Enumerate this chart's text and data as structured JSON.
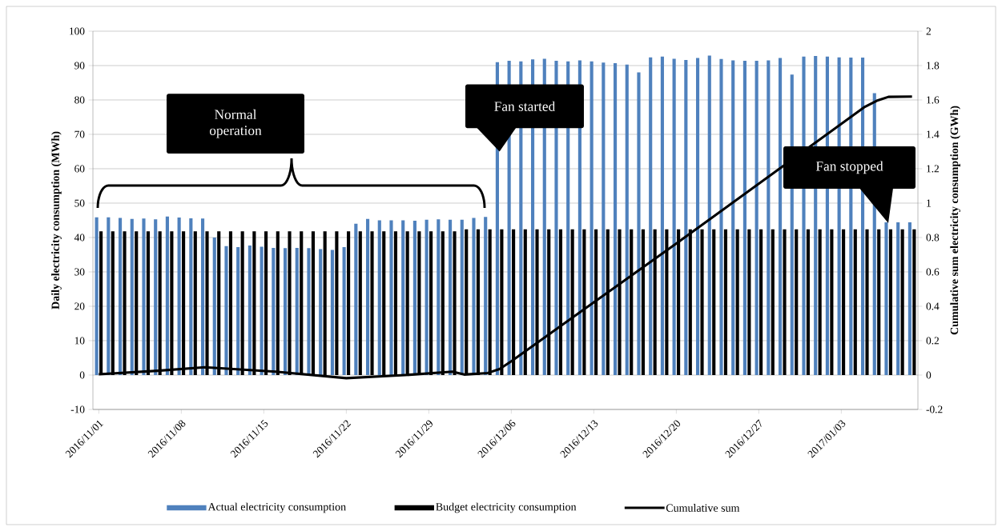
{
  "chart_data": {
    "type": "bar",
    "x": [
      "2016-11-01",
      "2016-11-02",
      "2016-11-03",
      "2016-11-04",
      "2016-11-05",
      "2016-11-06",
      "2016-11-07",
      "2016-11-08",
      "2016-11-09",
      "2016-11-10",
      "2016-11-11",
      "2016-11-12",
      "2016-11-13",
      "2016-11-14",
      "2016-11-15",
      "2016-11-16",
      "2016-11-17",
      "2016-11-18",
      "2016-11-19",
      "2016-11-20",
      "2016-11-21",
      "2016-11-22",
      "2016-11-23",
      "2016-11-24",
      "2016-11-25",
      "2016-11-26",
      "2016-11-27",
      "2016-11-28",
      "2016-11-29",
      "2016-11-30",
      "2016-12-01",
      "2016-12-02",
      "2016-12-03",
      "2016-12-04",
      "2016-12-05",
      "2016-12-06",
      "2016-12-07",
      "2016-12-08",
      "2016-12-09",
      "2016-12-10",
      "2016-12-11",
      "2016-12-12",
      "2016-12-13",
      "2016-12-14",
      "2016-12-15",
      "2016-12-16",
      "2016-12-17",
      "2016-12-18",
      "2016-12-19",
      "2016-12-20",
      "2016-12-21",
      "2016-12-22",
      "2016-12-23",
      "2016-12-24",
      "2016-12-25",
      "2016-12-26",
      "2016-12-27",
      "2016-12-28",
      "2016-12-29",
      "2016-12-30",
      "2016-12-31",
      "2017-01-01",
      "2017-01-02",
      "2017-01-03",
      "2017-01-04",
      "2017-01-05",
      "2017-01-06",
      "2017-01-07",
      "2017-01-08",
      "2017-01-09"
    ],
    "series": [
      {
        "name": "Actual electricity consumption",
        "color": "#4f81bd",
        "values": [
          45.9,
          45.9,
          45.7,
          45.4,
          45.5,
          45.3,
          46.1,
          45.8,
          45.6,
          45.5,
          40.0,
          37.5,
          37.2,
          37.7,
          37.3,
          37.0,
          36.9,
          37.0,
          36.9,
          36.6,
          36.4,
          37.2,
          44.0,
          45.4,
          45.0,
          45.0,
          45.0,
          44.9,
          45.2,
          45.3,
          45.2,
          45.2,
          45.7,
          46.0,
          91.0,
          91.4,
          91.2,
          91.8,
          92.0,
          91.4,
          91.2,
          91.5,
          91.2,
          90.9,
          90.7,
          90.3,
          88.0,
          92.4,
          92.6,
          92.0,
          91.6,
          92.2,
          92.9,
          91.9,
          91.5,
          91.4,
          91.4,
          91.5,
          92.2,
          87.4,
          92.6,
          92.8,
          92.6,
          92.4,
          92.3,
          92.3,
          82.0,
          44.4,
          44.4,
          44.4
        ]
      },
      {
        "name": "Budget electricity consumption",
        "color": "#000000",
        "values": [
          41.8,
          41.8,
          41.8,
          41.8,
          41.8,
          41.8,
          41.8,
          41.8,
          41.8,
          41.8,
          41.8,
          41.8,
          41.8,
          41.8,
          41.8,
          41.8,
          41.8,
          41.8,
          41.8,
          41.8,
          41.8,
          41.8,
          41.8,
          41.8,
          41.8,
          41.8,
          41.8,
          41.8,
          41.8,
          41.8,
          41.8,
          42.4,
          42.4,
          42.4,
          42.4,
          42.4,
          42.4,
          42.4,
          42.4,
          42.4,
          42.4,
          42.4,
          42.4,
          42.4,
          42.4,
          42.4,
          42.4,
          42.4,
          42.4,
          42.4,
          42.4,
          42.4,
          42.4,
          42.4,
          42.4,
          42.4,
          42.4,
          42.4,
          42.4,
          42.4,
          42.4,
          42.4,
          42.4,
          42.4,
          42.4,
          42.4,
          42.4,
          42.4,
          42.4,
          42.4
        ]
      },
      {
        "name": "Cumulative sum",
        "type": "line",
        "axis": "y2",
        "color": "#000000",
        "x": [
          "2016-11-01",
          "2016-11-06",
          "2016-11-10",
          "2016-11-16",
          "2016-11-22",
          "2016-11-27",
          "2016-12-01",
          "2016-12-02",
          "2016-12-04",
          "2016-12-05",
          "2016-12-06",
          "2016-12-20",
          "2017-01-05",
          "2017-01-06",
          "2017-01-07",
          "2017-01-09"
        ],
        "values": [
          0.005,
          0.025,
          0.045,
          0.02,
          -0.018,
          0.0,
          0.02,
          0.003,
          0.012,
          0.035,
          0.08,
          0.765,
          1.56,
          1.595,
          1.618,
          1.62
        ]
      }
    ],
    "xlim": [
      "2016-10-31T12:00",
      "2017-01-09T12:00"
    ],
    "xticks": [
      {
        "value": "2016-11-01",
        "label": "2016/11/01"
      },
      {
        "value": "2016-11-08",
        "label": "2016/11/08"
      },
      {
        "value": "2016-11-15",
        "label": "2016/11/15"
      },
      {
        "value": "2016-11-22",
        "label": "2016/11/22"
      },
      {
        "value": "2016-11-29",
        "label": "2016/11/29"
      },
      {
        "value": "2016-12-06",
        "label": "2016/12/06"
      },
      {
        "value": "2016-12-13",
        "label": "2016/12/13"
      },
      {
        "value": "2016-12-20",
        "label": "2016/12/20"
      },
      {
        "value": "2016-12-27",
        "label": "2016/12/27"
      },
      {
        "value": "2017-01-03",
        "label": "2017/01/03"
      }
    ],
    "ylim": [
      -10,
      100
    ],
    "yticks": [
      -10,
      0,
      10,
      20,
      30,
      40,
      50,
      60,
      70,
      80,
      90,
      100
    ],
    "y2lim": [
      -0.2,
      2
    ],
    "y2ticks": [
      -0.2,
      0,
      0.2,
      0.4,
      0.6,
      0.8,
      1,
      1.2,
      1.4,
      1.6,
      1.8,
      2
    ],
    "ylabel": "Daily electricity consumption (MWh)",
    "y2label": "Cumulative sum electricity consumption (GWh)",
    "grid": "y",
    "legend": "bottom",
    "annotations": [
      "Normal operation",
      {
        "text": "Fan started",
        "x": "2016-12-05",
        "y": 65
      },
      "Fan stopped"
    ]
  }
}
